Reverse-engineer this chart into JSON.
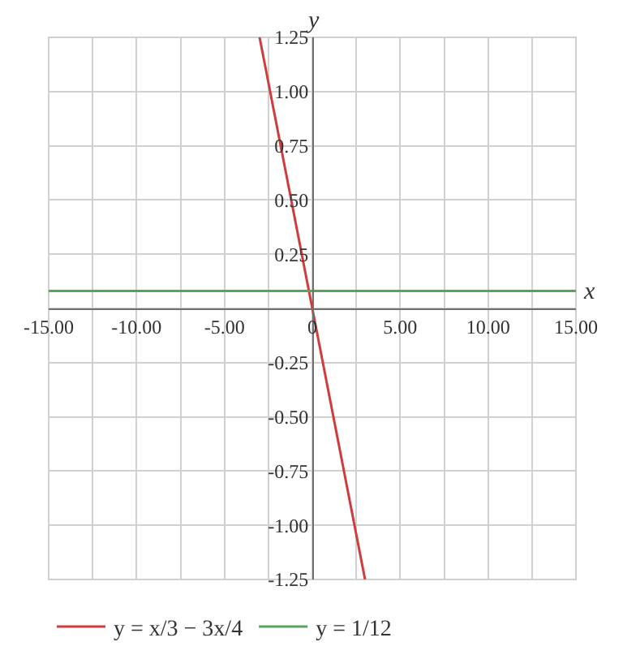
{
  "chart_data": {
    "type": "line",
    "xlabel": "x",
    "ylabel": "y",
    "series": [
      {
        "name": "y = x/3 − 3x/4",
        "color": "#d03b3b",
        "x": [
          -3,
          3
        ],
        "values": [
          1.25,
          -1.25
        ]
      },
      {
        "name": "y = 1/12",
        "color": "#5aa35a",
        "x": [
          -15,
          15
        ],
        "values": [
          0.08,
          0.08
        ]
      }
    ],
    "xlim": [
      -15,
      15
    ],
    "xticks": [
      {
        "value": -15,
        "label": "-15.00"
      },
      {
        "value": -12.5,
        "label": null
      },
      {
        "value": -10,
        "label": "-10.00"
      },
      {
        "value": -7.5,
        "label": null
      },
      {
        "value": -5,
        "label": "-5.00"
      },
      {
        "value": -2.5,
        "label": null
      },
      0,
      {
        "value": 2.5,
        "label": null
      },
      {
        "value": 5,
        "label": "5.00"
      },
      {
        "value": 7.5,
        "label": null
      },
      {
        "value": 10,
        "label": "10.00"
      },
      {
        "value": 12.5,
        "label": null
      },
      {
        "value": 15,
        "label": "15.00"
      }
    ],
    "ylim": [
      -1.25,
      1.25
    ],
    "yticks": [
      {
        "value": -1.25,
        "label": "-1.25"
      },
      {
        "value": -1,
        "label": "-1.00"
      },
      {
        "value": -0.75,
        "label": "-0.75"
      },
      {
        "value": -0.5,
        "label": "-0.50"
      },
      {
        "value": -0.25,
        "label": "-0.25"
      },
      {
        "value": 0,
        "label": null
      },
      {
        "value": 0.25,
        "label": "0.25"
      },
      {
        "value": 0.5,
        "label": "0.50"
      },
      {
        "value": 0.75,
        "label": "0.75"
      },
      {
        "value": 1,
        "label": "1.00"
      },
      {
        "value": 1.25,
        "label": "1.25"
      }
    ],
    "grid": true,
    "legend": "bottom left",
    "marker": "none",
    "line_style": "solid"
  }
}
